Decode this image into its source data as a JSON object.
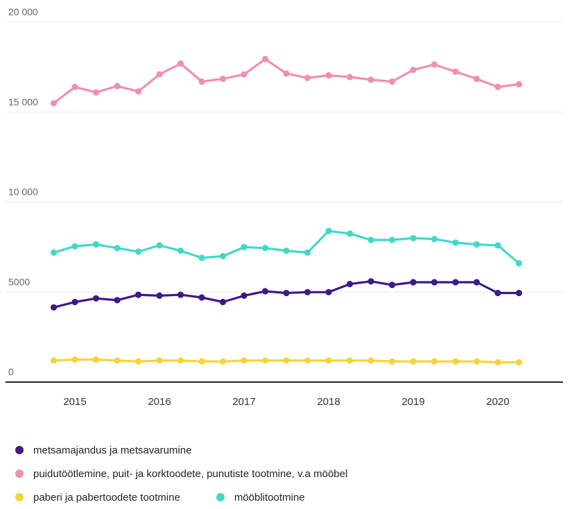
{
  "colors": {
    "metsamajandus": "#3b1a8a",
    "puidutootlemine": "#f08fb0",
    "paberi": "#f5d43a",
    "mooblitootmine": "#42d8c8",
    "grid": "#e8e8e8",
    "axis": "#222222"
  },
  "chart_data": {
    "type": "line",
    "title": "",
    "xlabel": "",
    "ylabel": "",
    "ylim": [
      0,
      20000
    ],
    "yticks": [
      {
        "value": 0,
        "label": "0"
      },
      {
        "value": 5000,
        "label": "5000"
      },
      {
        "value": 10000,
        "label": "10 000"
      },
      {
        "value": 15000,
        "label": "15 000"
      },
      {
        "value": 20000,
        "label": "20 000"
      }
    ],
    "xticks": [
      {
        "value": 2015,
        "label": "2015"
      },
      {
        "value": 2016,
        "label": "2016"
      },
      {
        "value": 2017,
        "label": "2017"
      },
      {
        "value": 2018,
        "label": "2018"
      },
      {
        "value": 2019,
        "label": "2019"
      },
      {
        "value": 2020,
        "label": "2020"
      }
    ],
    "x": [
      "2014Q4",
      "2015Q1",
      "2015Q2",
      "2015Q3",
      "2015Q4",
      "2016Q1",
      "2016Q2",
      "2016Q3",
      "2016Q4",
      "2017Q1",
      "2017Q2",
      "2017Q3",
      "2017Q4",
      "2018Q1",
      "2018Q2",
      "2018Q3",
      "2018Q4",
      "2019Q1",
      "2019Q2",
      "2019Q3",
      "2019Q4",
      "2020Q1",
      "2020Q2"
    ],
    "x_numeric": [
      2014.75,
      2015.0,
      2015.25,
      2015.5,
      2015.75,
      2016.0,
      2016.25,
      2016.5,
      2016.75,
      2017.0,
      2017.25,
      2017.5,
      2017.75,
      2018.0,
      2018.25,
      2018.5,
      2018.75,
      2019.0,
      2019.25,
      2019.5,
      2019.75,
      2020.0,
      2020.25
    ],
    "grid": true,
    "legend_position": "bottom",
    "series": [
      {
        "name": "puidutöötlemine, puit- ja korktoodete, punutiste tootmine, v.a mööbel",
        "color_key": "puidutootlemine",
        "values": [
          15500,
          16400,
          16100,
          16450,
          16150,
          17100,
          17700,
          16700,
          16850,
          17100,
          17950,
          17150,
          16900,
          17050,
          16950,
          16800,
          16700,
          17350,
          17650,
          17250,
          16850,
          16400,
          16550
        ]
      },
      {
        "name": "mööblitootmine",
        "color_key": "mooblitootmine",
        "values": [
          7200,
          7550,
          7650,
          7450,
          7250,
          7600,
          7300,
          6900,
          7000,
          7500,
          7450,
          7300,
          7200,
          8400,
          8250,
          7900,
          7900,
          8000,
          7950,
          7750,
          7650,
          7600,
          6600
        ]
      },
      {
        "name": "metsamajandus ja metsavarumine",
        "color_key": "metsamajandus",
        "values": [
          4150,
          4450,
          4650,
          4550,
          4850,
          4800,
          4850,
          4700,
          4450,
          4800,
          5050,
          4950,
          5000,
          5000,
          5450,
          5600,
          5400,
          5550,
          5550,
          5550,
          5550,
          4950,
          4950
        ]
      },
      {
        "name": "paberi ja pabertoodete tootmine",
        "color_key": "paberi",
        "values": [
          1200,
          1250,
          1250,
          1200,
          1150,
          1200,
          1200,
          1150,
          1150,
          1200,
          1200,
          1200,
          1200,
          1200,
          1200,
          1200,
          1150,
          1150,
          1150,
          1150,
          1150,
          1100,
          1100
        ]
      }
    ]
  },
  "legend": {
    "rows": [
      [
        {
          "label": "metsamajandus ja metsavarumine",
          "color_key": "metsamajandus"
        }
      ],
      [
        {
          "label": "puidutöötlemine, puit- ja korktoodete, punutiste tootmine, v.a mööbel",
          "color_key": "puidutootlemine"
        }
      ],
      [
        {
          "label": "paberi ja pabertoodete tootmine",
          "color_key": "paberi"
        },
        {
          "label": "mööblitootmine",
          "color_key": "mooblitootmine"
        }
      ]
    ]
  }
}
